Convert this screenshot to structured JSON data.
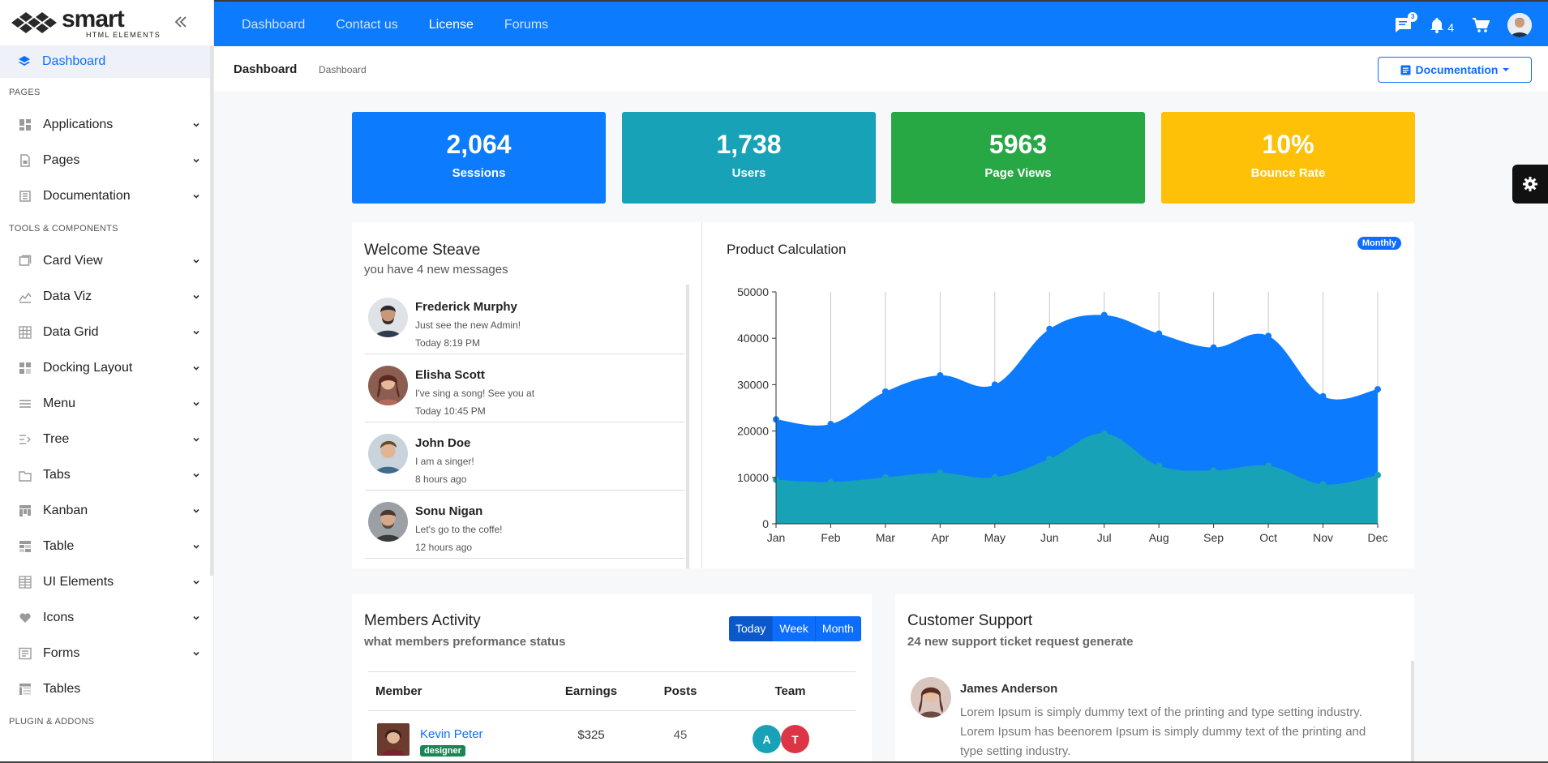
{
  "brand": {
    "name": "smart",
    "tagline": "HTML ELEMENTS"
  },
  "sidebar": {
    "active": {
      "label": "Dashboard",
      "icon": "layers-icon"
    },
    "sections": [
      {
        "title": "PAGES",
        "items": [
          {
            "label": "Applications",
            "icon": "grid-icon"
          },
          {
            "label": "Pages",
            "icon": "file-icon"
          },
          {
            "label": "Documentation",
            "icon": "book-icon"
          }
        ]
      },
      {
        "title": "TOOLS & COMPONENTS",
        "items": [
          {
            "label": "Card View",
            "icon": "cards-icon"
          },
          {
            "label": "Data Viz",
            "icon": "chart-icon"
          },
          {
            "label": "Data Grid",
            "icon": "table-grid-icon"
          },
          {
            "label": "Docking Layout",
            "icon": "dock-icon"
          },
          {
            "label": "Menu",
            "icon": "menu-icon"
          },
          {
            "label": "Tree",
            "icon": "tree-icon"
          },
          {
            "label": "Tabs",
            "icon": "tabs-icon"
          },
          {
            "label": "Kanban",
            "icon": "kanban-icon"
          },
          {
            "label": "Table",
            "icon": "table-icon"
          },
          {
            "label": "UI Elements",
            "icon": "ui-grid-icon"
          },
          {
            "label": "Icons",
            "icon": "heart-icon"
          },
          {
            "label": "Forms",
            "icon": "form-icon"
          },
          {
            "label": "Tables",
            "icon": "tables-icon"
          }
        ]
      },
      {
        "title": "PLUGIN & ADDONS",
        "items": []
      }
    ]
  },
  "topbar": {
    "nav": [
      "Dashboard",
      "Contact us",
      "License",
      "Forums"
    ],
    "active_nav": "License",
    "messages_badge": "3",
    "notifications_count": "4"
  },
  "crumbbar": {
    "title": "Dashboard",
    "crumb": "Dashboard",
    "doc_button": "Documentation"
  },
  "stats": [
    {
      "value": "2,064",
      "label": "Sessions",
      "color": "#0d7bfd"
    },
    {
      "value": "1,738",
      "label": "Users",
      "color": "#17a2b8"
    },
    {
      "value": "5963",
      "label": "Page Views",
      "color": "#28a745"
    },
    {
      "value": "10%",
      "label": "Bounce Rate",
      "color": "#ffc107"
    }
  ],
  "welcome": {
    "title": "Welcome Steave",
    "subtitle": "you have 4 new messages",
    "messages": [
      {
        "name": "Frederick Murphy",
        "text": "Just see the new Admin!",
        "time": "Today 8:19 PM"
      },
      {
        "name": "Elisha Scott",
        "text": "I've sing a song! See you at",
        "time": "Today 10:45 PM"
      },
      {
        "name": "John Doe",
        "text": "I am a singer!",
        "time": "8 hours ago"
      },
      {
        "name": "Sonu Nigan",
        "text": "Let's go to the coffe!",
        "time": "12 hours ago"
      }
    ]
  },
  "product": {
    "title": "Product Calculation",
    "badge": "Monthly"
  },
  "chart_data": {
    "type": "area",
    "title": "Product Calculation",
    "categories": [
      "Jan",
      "Feb",
      "Mar",
      "Apr",
      "May",
      "Jun",
      "Jul",
      "Aug",
      "Sep",
      "Oct",
      "Nov",
      "Dec"
    ],
    "series": [
      {
        "values": [
          22500,
          21500,
          28500,
          32000,
          30000,
          42000,
          45000,
          41000,
          38000,
          40500,
          27500,
          29000
        ],
        "color": "#0d7bfd"
      },
      {
        "values": [
          9500,
          9000,
          10000,
          11000,
          10000,
          14000,
          19500,
          12500,
          11500,
          12500,
          8500,
          10500
        ],
        "color": "#17a2b8"
      }
    ],
    "yticks": [
      "0",
      "10000",
      "20000",
      "30000",
      "40000",
      "50000"
    ],
    "ylim": [
      0,
      50000
    ],
    "grid": "vertical"
  },
  "members": {
    "title": "Members Activity",
    "subtitle": "what members preformance status",
    "ranges": [
      "Today",
      "Week",
      "Month"
    ],
    "active_range": "Today",
    "columns": [
      "Member",
      "Earnings",
      "Posts",
      "Team"
    ],
    "rows": [
      {
        "name": "Kevin Peter",
        "tag": "designer",
        "earnings": "$325",
        "posts": "45",
        "team": [
          {
            "letter": "A",
            "color": "#17a2b8"
          },
          {
            "letter": "T",
            "color": "#dc3545"
          }
        ]
      }
    ]
  },
  "support": {
    "title": "Customer Support",
    "subtitle": "24 new support ticket request generate",
    "tickets": [
      {
        "name": "James Anderson",
        "text": "Lorem Ipsum is simply dummy text of the printing and type setting industry. Lorem Ipsum has beenorem Ipsum is simply dummy text of the printing and type setting industry."
      }
    ]
  }
}
